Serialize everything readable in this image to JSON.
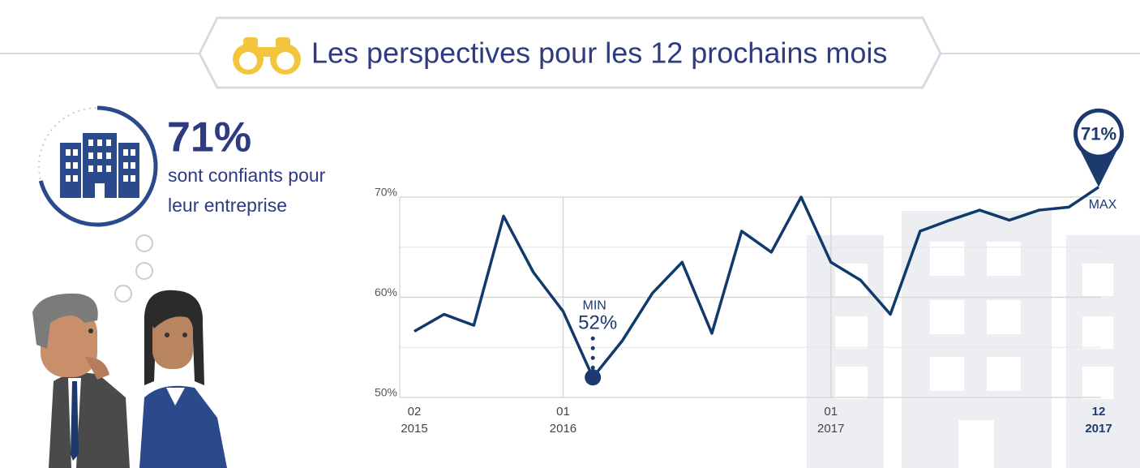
{
  "header": {
    "title": "Les perspectives pour les 12 prochains mois"
  },
  "gauge": {
    "value": 71,
    "label": "71%",
    "caption_lines": [
      "sont confiants pour",
      "leur entreprise"
    ]
  },
  "chart_data": {
    "type": "line",
    "categories": [
      "02 2015",
      null,
      null,
      null,
      null,
      "01 2016",
      null,
      null,
      null,
      null,
      null,
      null,
      null,
      null,
      "01 2017",
      null,
      null,
      null,
      null,
      null,
      null,
      null,
      null,
      "12 2017"
    ],
    "values": [
      56.6,
      58.3,
      57.2,
      68.1,
      62.5,
      58.6,
      52,
      55.7,
      60.4,
      63.5,
      56.4,
      66.6,
      64.5,
      70,
      63.5,
      61.7,
      58.3,
      66.6,
      67.7,
      68.7,
      67.7,
      68.7,
      69,
      71
    ],
    "value_labels": [
      null,
      null,
      null,
      null,
      null,
      null,
      "52%",
      null,
      null,
      null,
      null,
      null,
      null,
      null,
      null,
      null,
      null,
      null,
      null,
      null,
      null,
      null,
      null,
      "71%"
    ],
    "color": "#0f3a6b",
    "ylim": [
      50,
      70
    ],
    "yticks": [
      {
        "value": 50,
        "label": "50%"
      },
      {
        "value": 60,
        "label": "60%"
      },
      {
        "value": 70,
        "label": "70%"
      }
    ],
    "minor_yticks": [
      55,
      65
    ],
    "grid": true,
    "annotations": {
      "min": "MIN",
      "max": "MAX"
    }
  }
}
